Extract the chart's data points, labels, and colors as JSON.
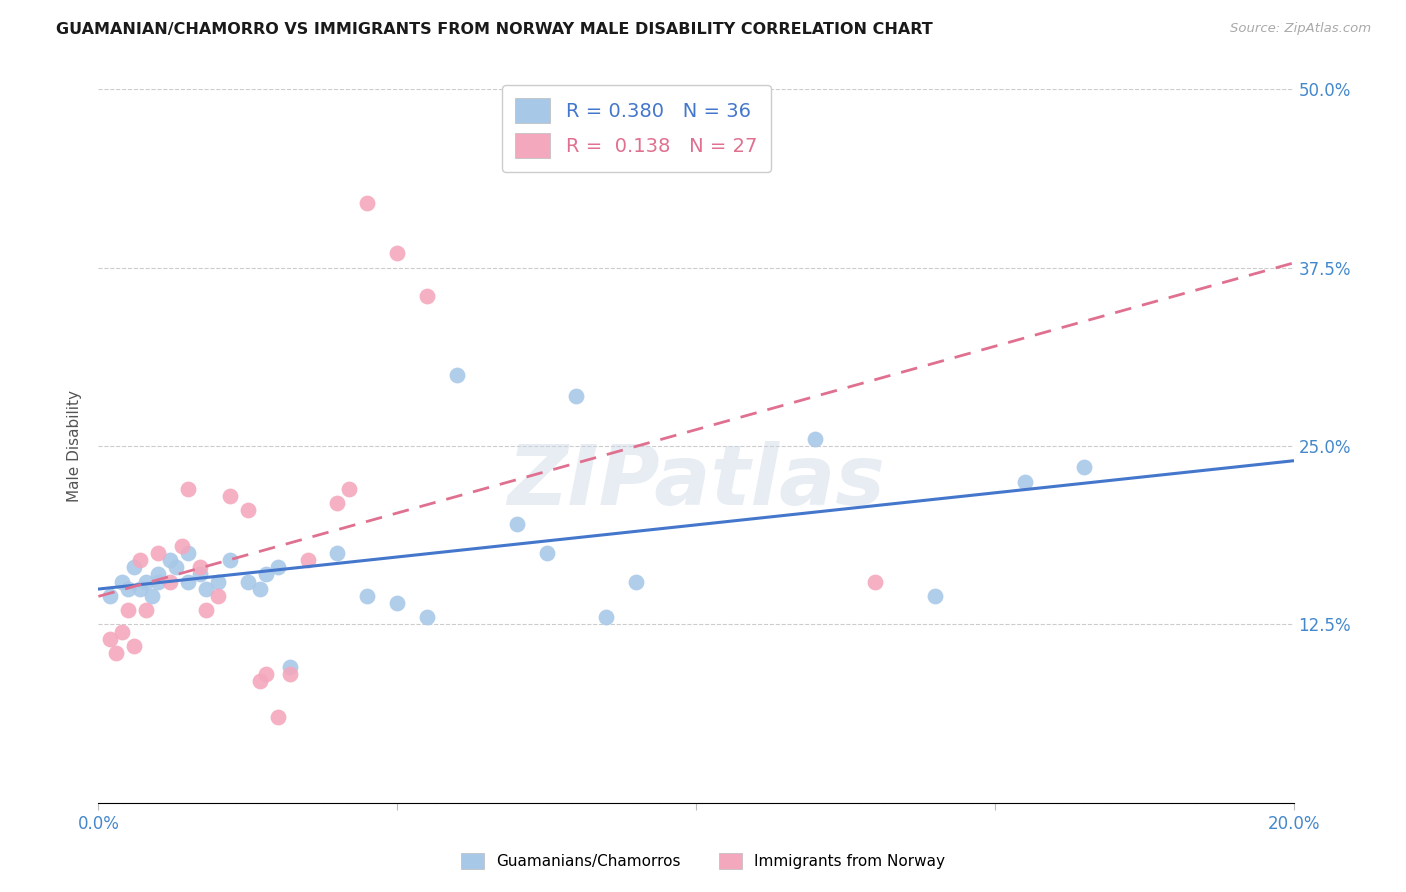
{
  "title": "GUAMANIAN/CHAMORRO VS IMMIGRANTS FROM NORWAY MALE DISABILITY CORRELATION CHART",
  "source": "Source: ZipAtlas.com",
  "ylabel_label": "Male Disability",
  "xlim": [
    0.0,
    0.2
  ],
  "ylim": [
    0.0,
    0.5
  ],
  "xticks": [
    0.0,
    0.05,
    0.1,
    0.15,
    0.2
  ],
  "yticks": [
    0.0,
    0.125,
    0.25,
    0.375,
    0.5
  ],
  "ytick_labels": [
    "",
    "12.5%",
    "25.0%",
    "37.5%",
    "50.0%"
  ],
  "xtick_labels": [
    "0.0%",
    "",
    "",
    "",
    "20.0%"
  ],
  "blue_R": 0.38,
  "blue_N": 36,
  "pink_R": 0.138,
  "pink_N": 27,
  "blue_color": "#a8c8e8",
  "pink_color": "#f4a8be",
  "blue_line_color": "#4477cc",
  "pink_line_color": "#e07090",
  "background_color": "#ffffff",
  "grid_color": "#cccccc",
  "axis_label_color": "#4488cc",
  "blue_scatter_x": [
    0.002,
    0.004,
    0.005,
    0.006,
    0.007,
    0.008,
    0.009,
    0.01,
    0.01,
    0.012,
    0.013,
    0.015,
    0.015,
    0.017,
    0.018,
    0.02,
    0.022,
    0.025,
    0.027,
    0.028,
    0.03,
    0.032,
    0.04,
    0.045,
    0.05,
    0.055,
    0.06,
    0.07,
    0.075,
    0.08,
    0.085,
    0.09,
    0.12,
    0.14,
    0.155,
    0.165
  ],
  "blue_scatter_y": [
    0.145,
    0.155,
    0.15,
    0.165,
    0.15,
    0.155,
    0.145,
    0.16,
    0.155,
    0.17,
    0.165,
    0.175,
    0.155,
    0.16,
    0.15,
    0.155,
    0.17,
    0.155,
    0.15,
    0.16,
    0.165,
    0.095,
    0.175,
    0.145,
    0.14,
    0.13,
    0.3,
    0.195,
    0.175,
    0.285,
    0.13,
    0.155,
    0.255,
    0.145,
    0.225,
    0.235
  ],
  "pink_scatter_x": [
    0.002,
    0.003,
    0.004,
    0.005,
    0.006,
    0.007,
    0.008,
    0.01,
    0.012,
    0.014,
    0.015,
    0.017,
    0.018,
    0.02,
    0.022,
    0.025,
    0.027,
    0.028,
    0.03,
    0.032,
    0.035,
    0.04,
    0.042,
    0.045,
    0.05,
    0.055,
    0.13
  ],
  "pink_scatter_y": [
    0.115,
    0.105,
    0.12,
    0.135,
    0.11,
    0.17,
    0.135,
    0.175,
    0.155,
    0.18,
    0.22,
    0.165,
    0.135,
    0.145,
    0.215,
    0.205,
    0.085,
    0.09,
    0.06,
    0.09,
    0.17,
    0.21,
    0.22,
    0.42,
    0.385,
    0.355,
    0.155
  ],
  "watermark_text": "ZIPatlas",
  "legend_label_blue": "Guamanians/Chamorros",
  "legend_label_pink": "Immigrants from Norway"
}
